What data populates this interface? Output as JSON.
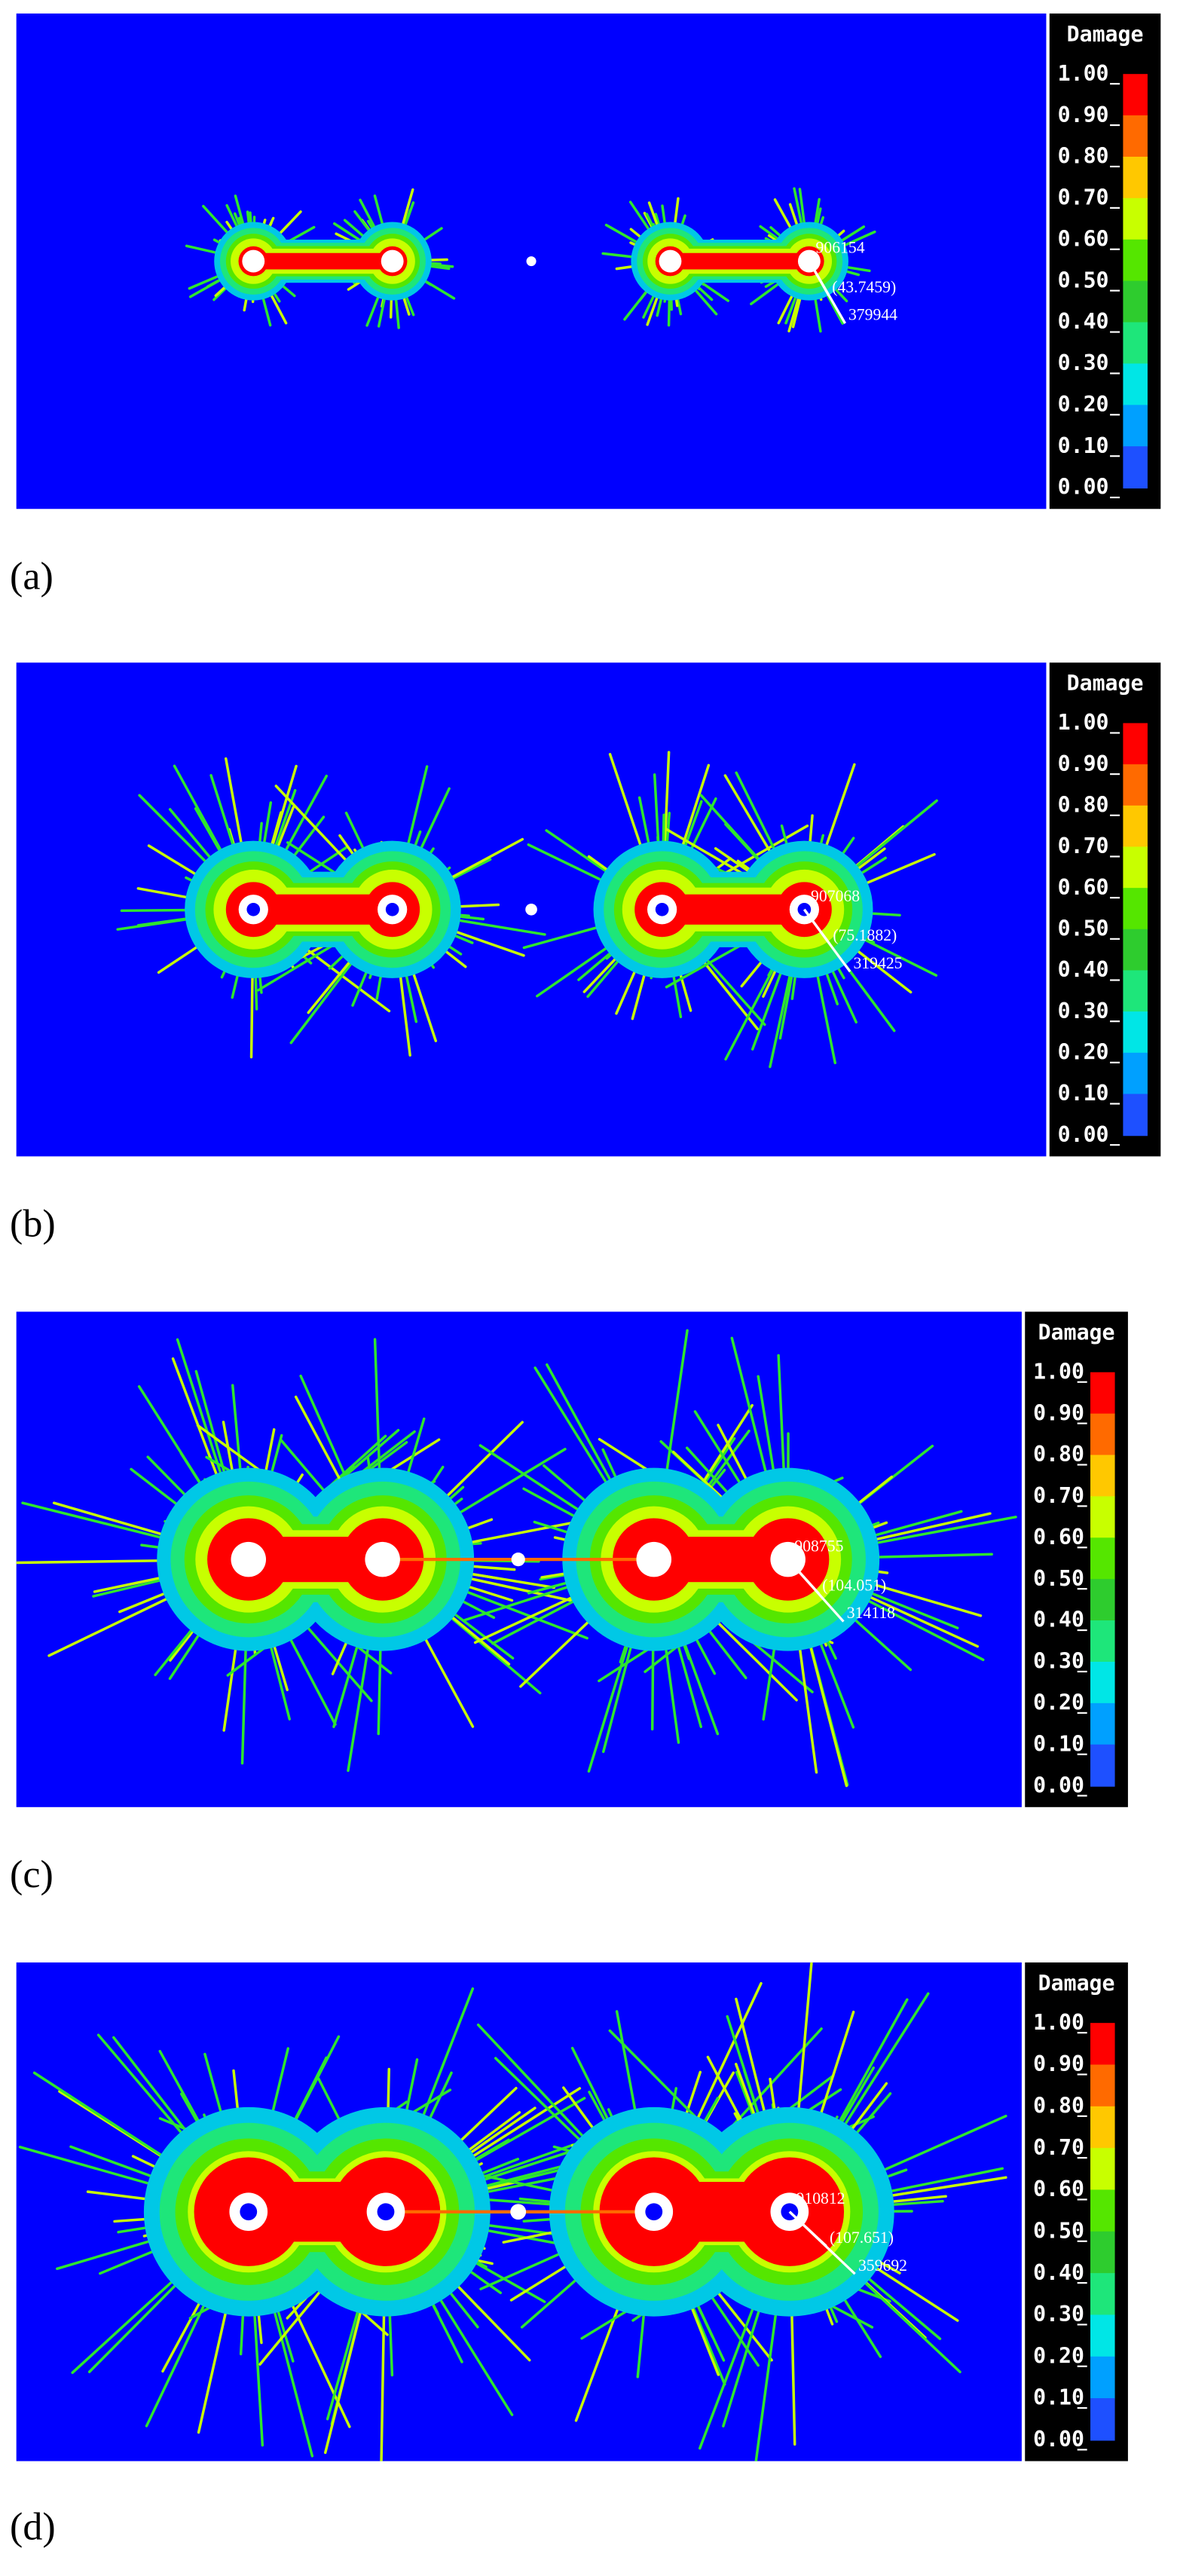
{
  "colorbar": {
    "title": "Damage",
    "ticks": [
      "1.00",
      "0.90",
      "0.80",
      "0.70",
      "0.60",
      "0.50",
      "0.40",
      "0.30",
      "0.20",
      "0.10",
      "0.00"
    ],
    "colors": [
      "#ff0000",
      "#ff6a00",
      "#ffc800",
      "#c8ff00",
      "#55e600",
      "#2ecc2e",
      "#1ee67a",
      "#00e6e6",
      "#00a0ff",
      "#1e50ff"
    ]
  },
  "panels": [
    {
      "label": "(a)",
      "annotations": [
        "906154",
        "(43.7459)",
        "379944"
      ]
    },
    {
      "label": "(b)",
      "annotations": [
        "907068",
        "(75.1882)",
        "319425"
      ]
    },
    {
      "label": "(c)",
      "annotations": [
        "908755",
        "(104.051)",
        "314118"
      ]
    },
    {
      "label": "(d)",
      "annotations": [
        "910812",
        "(107.651)",
        "359692"
      ]
    }
  ]
}
